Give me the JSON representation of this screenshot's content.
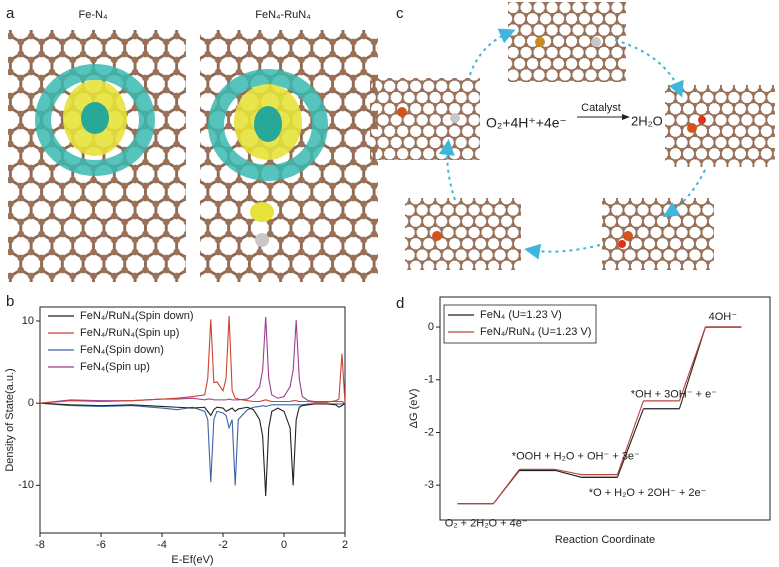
{
  "figure": {
    "panel_labels": [
      "a",
      "b",
      "c",
      "d"
    ],
    "panel_a": {
      "titles": [
        "Fe-N₄",
        "FeN₄-RuN₄"
      ]
    },
    "panel_c": {
      "reactants": "O₂+4H⁺+4e⁻",
      "catalyst": "Catalyst",
      "product": "2H₂O"
    }
  },
  "chart_data": [
    {
      "type": "line",
      "xlabel": "E-Ef(eV)",
      "ylabel": "Density of State(a.u.)",
      "x": [
        -8,
        -7,
        -6,
        -5,
        -4,
        -3.5,
        -3,
        -2.6,
        -2.5,
        -2.4,
        -2.3,
        -2.2,
        -2,
        -1.9,
        -1.8,
        -1.7,
        -1.6,
        -1.5,
        -1.2,
        -1,
        -0.8,
        -0.7,
        -0.6,
        -0.5,
        -0.4,
        -0.2,
        0,
        0.2,
        0.3,
        0.4,
        0.5,
        0.6,
        0.8,
        1,
        1.4,
        1.7,
        1.8,
        1.9,
        2
      ],
      "series": [
        {
          "name": "FeN₄/RuN₄(Spin down)",
          "color": "#222222",
          "values": [
            0,
            -0.2,
            -0.3,
            -0.2,
            -0.4,
            -0.5,
            -0.6,
            -0.5,
            -1,
            -1.5,
            -0.8,
            -0.5,
            -0.6,
            -1,
            -0.8,
            -0.6,
            -1,
            -0.7,
            -0.5,
            -0.8,
            -2,
            -4,
            -11.3,
            -3,
            -1,
            -0.6,
            -1,
            -3,
            -10,
            -2,
            -0.5,
            -0.3,
            -0.2,
            -0.1,
            -0.1,
            -0.2,
            -0.5,
            -0.3,
            0
          ]
        },
        {
          "name": "FeN₄/RuN₄(Spin up)",
          "color": "#cc4430",
          "values": [
            0,
            0.3,
            0.2,
            0.3,
            0.5,
            0.6,
            0.8,
            1,
            3,
            10.2,
            2.5,
            2.6,
            1.5,
            3,
            10.6,
            1.5,
            0.6,
            0.5,
            0.3,
            0.2,
            0.2,
            0.3,
            0.4,
            0.3,
            0.2,
            0.2,
            0.2,
            0.2,
            0.3,
            0.3,
            0.2,
            0.2,
            0.2,
            0.1,
            0.1,
            0.3,
            0.5,
            6,
            0
          ]
        },
        {
          "name": "FeN₄(Spin down)",
          "color": "#3d63a8",
          "values": [
            0,
            -0.3,
            -0.4,
            -0.3,
            -0.6,
            -0.8,
            -0.5,
            -1,
            -2,
            -9.6,
            -2,
            -1,
            -1.2,
            -1.5,
            -3,
            -2,
            -10,
            -2,
            -0.8,
            -0.5,
            -0.4,
            -0.3,
            -0.4,
            -0.3,
            -0.2,
            -0.2,
            -0.2,
            -0.2,
            -0.2,
            -0.2,
            -0.2,
            -0.2,
            -0.1,
            -0.1,
            -0.1,
            -0.1,
            -0.1,
            -0.1,
            0
          ]
        },
        {
          "name": "FeN₄(Spin up)",
          "color": "#a03c90",
          "values": [
            0,
            0.4,
            0.3,
            0.3,
            0.5,
            0.5,
            0.6,
            0.4,
            0.5,
            0.5,
            0.4,
            0.4,
            0.4,
            0.4,
            0.5,
            0.4,
            0.4,
            0.4,
            0.5,
            1,
            2,
            4,
            10.5,
            3,
            1,
            0.6,
            0.8,
            2,
            4,
            10.1,
            3,
            0.8,
            0.3,
            0.2,
            0.2,
            0.2,
            0.2,
            0.2,
            0
          ]
        }
      ],
      "xlim": [
        -8,
        2
      ],
      "ylim": [
        -15.8,
        11.7
      ],
      "xticks": [
        -8,
        -6,
        -4,
        -2,
        0,
        2
      ],
      "yticks": [
        -10,
        0,
        10
      ],
      "legend": "upper left"
    },
    {
      "type": "step",
      "xlabel": "Reaction Coordinate",
      "ylabel": "ΔG (eV)",
      "categories": [
        "O₂ + 2H₂O + 4e⁻",
        "*OOH + H₂O + OH⁻ + 3e⁻",
        "*O + H₂O + 2OH⁻ + 2e⁻",
        "*OH + 3OH⁻ + e⁻",
        "4OH⁻"
      ],
      "series": [
        {
          "name": "FeN₄ (U=1.23 V)",
          "color": "#222222",
          "values": [
            -3.35,
            -2.72,
            -2.85,
            -1.55,
            0
          ]
        },
        {
          "name": "FeN₄/RuN₄ (U=1.23 V)",
          "color": "#b8433a",
          "values": [
            -3.35,
            -2.7,
            -2.8,
            -1.4,
            0
          ]
        }
      ],
      "ylim": [
        -3.66,
        0.57
      ],
      "yticks": [
        0,
        -1,
        -2,
        -3
      ],
      "legend": "upper left"
    }
  ]
}
